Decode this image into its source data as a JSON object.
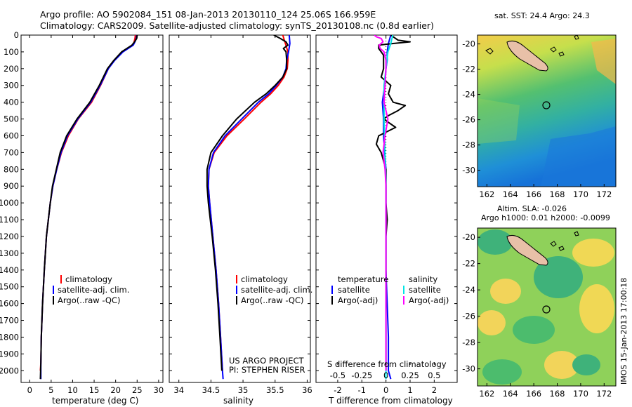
{
  "header": {
    "title_line1": "Argo profile: AO 5902084_151 08-Jan-2013 20130110_124 25.06S 166.959E",
    "title_line2": "Climatology: CARS2009. Satellite-adjusted climatology: synTS_20130108.nc (0.8d earlier)"
  },
  "colors": {
    "climatology": "#ff0000",
    "satellite": "#0000ff",
    "argo": "#000000",
    "sal_satellite": "#00e5e5",
    "sal_argo": "#ff00ff",
    "land": "#e8c0a8"
  },
  "depth_axis": {
    "ticks": [
      0,
      100,
      200,
      300,
      400,
      500,
      600,
      700,
      800,
      900,
      1000,
      1100,
      1200,
      1300,
      1400,
      1500,
      1600,
      1700,
      1800,
      1900,
      2000
    ]
  },
  "chart_data": [
    {
      "type": "line",
      "xlabel": "temperature (deg C)",
      "xticks": [
        "0",
        "5",
        "10",
        "15",
        "20",
        "25",
        "30"
      ],
      "xlim": [
        -2,
        31
      ],
      "ylim": [
        0,
        2070
      ],
      "legend": [
        "climatology",
        "satellite-adj. clim.",
        "Argo(..raw -QC)"
      ],
      "series": [
        {
          "name": "climatology",
          "color_key": "climatology",
          "depth": [
            0,
            20,
            40,
            60,
            80,
            100,
            150,
            200,
            300,
            400,
            500,
            600,
            700,
            800,
            900,
            1000,
            1200,
            1400,
            1600,
            1800,
            1950,
            2000
          ],
          "values": [
            24.6,
            24.5,
            24.3,
            24.0,
            22.8,
            21.6,
            19.7,
            18.3,
            16.5,
            14.4,
            11.3,
            9.0,
            7.4,
            6.3,
            5.4,
            4.8,
            3.9,
            3.4,
            3.0,
            2.7,
            2.6,
            2.5
          ]
        },
        {
          "name": "satellite-adj. clim.",
          "color_key": "satellite",
          "depth": [
            0,
            20,
            40,
            60,
            80,
            100,
            150,
            200,
            300,
            400,
            500,
            600,
            700,
            800,
            900,
            1000,
            1200,
            1400,
            1600,
            1800,
            1950,
            2050
          ],
          "values": [
            24.9,
            24.8,
            24.5,
            24.1,
            22.9,
            21.7,
            19.8,
            18.3,
            16.4,
            14.2,
            11.2,
            8.8,
            7.3,
            6.3,
            5.4,
            4.8,
            3.9,
            3.4,
            3.0,
            2.7,
            2.6,
            2.6
          ]
        },
        {
          "name": "Argo(..raw -QC)",
          "color_key": "argo",
          "depth": [
            0,
            20,
            40,
            60,
            80,
            100,
            150,
            200,
            300,
            400,
            500,
            600,
            700,
            800,
            900,
            1000,
            1200,
            1400,
            1600,
            1800,
            1950,
            2050
          ],
          "values": [
            25.0,
            24.9,
            24.4,
            23.8,
            22.6,
            21.4,
            19.6,
            18.1,
            16.2,
            14.0,
            11.0,
            8.6,
            7.1,
            6.2,
            5.3,
            4.8,
            3.9,
            3.4,
            3.0,
            2.7,
            2.6,
            2.5
          ]
        }
      ]
    },
    {
      "type": "line",
      "xlabel": "salinity",
      "xticks": [
        "34",
        "34.5",
        "35",
        "35.5",
        "36"
      ],
      "xlim": [
        33.85,
        36.05
      ],
      "ylim": [
        0,
        2070
      ],
      "legend": [
        "climatology",
        "satellite-adj. clim.",
        "Argo(..raw -QC)"
      ],
      "annotation": [
        "US ARGO PROJECT",
        "PI: STEPHEN RISER"
      ],
      "series": [
        {
          "name": "climatology",
          "color_key": "climatology",
          "depth": [
            0,
            50,
            100,
            150,
            200,
            250,
            300,
            350,
            400,
            500,
            600,
            700,
            800,
            900,
            1000,
            1200,
            1400,
            1600,
            1800,
            2000
          ],
          "values": [
            35.62,
            35.66,
            35.7,
            35.7,
            35.69,
            35.64,
            35.55,
            35.43,
            35.28,
            35.02,
            34.75,
            34.55,
            34.47,
            34.46,
            34.48,
            34.53,
            34.58,
            34.62,
            34.65,
            34.68
          ]
        },
        {
          "name": "satellite-adj. clim.",
          "color_key": "satellite",
          "depth": [
            0,
            50,
            100,
            150,
            200,
            250,
            300,
            350,
            400,
            500,
            600,
            700,
            800,
            900,
            1000,
            1200,
            1400,
            1600,
            1800,
            2000,
            2050
          ],
          "values": [
            35.72,
            35.73,
            35.71,
            35.68,
            35.67,
            35.62,
            35.52,
            35.4,
            35.24,
            34.98,
            34.72,
            34.54,
            34.47,
            34.46,
            34.48,
            34.53,
            34.58,
            34.62,
            34.65,
            34.68,
            34.69
          ]
        },
        {
          "name": "Argo(..raw -QC)",
          "color_key": "argo",
          "depth": [
            0,
            20,
            40,
            60,
            80,
            100,
            150,
            200,
            250,
            300,
            350,
            400,
            500,
            600,
            700,
            800,
            900,
            1000,
            1200,
            1400,
            1600,
            1800,
            2000
          ],
          "values": [
            35.48,
            35.58,
            35.67,
            35.7,
            35.63,
            35.67,
            35.68,
            35.68,
            35.62,
            35.5,
            35.36,
            35.18,
            34.9,
            34.68,
            34.5,
            34.44,
            34.44,
            34.46,
            34.52,
            34.57,
            34.61,
            34.64,
            34.67
          ]
        }
      ]
    },
    {
      "type": "line",
      "xlabel": "T difference from climatology",
      "xlabel_top": "S difference from climatology",
      "xticks": [
        "-2",
        "-1",
        "0",
        "1",
        "2"
      ],
      "xticks_s": [
        "-0.5",
        "-0.25",
        "0",
        "0.25",
        "0.5"
      ],
      "xlim": [
        -2.9,
        2.95
      ],
      "ylim": [
        0,
        2070
      ],
      "legend_temperature": [
        "temperature",
        "satellite",
        "Argo(-adj)"
      ],
      "legend_salinity": [
        "salinity",
        "satellite",
        "Argo(-adj)"
      ],
      "series": [
        {
          "name": "temperature satellite",
          "color_key": "satellite",
          "depth": [
            0,
            50,
            100,
            150,
            200,
            300,
            400,
            500,
            600,
            800,
            1000,
            1400,
            1800,
            2000,
            2050
          ],
          "values": [
            0.2,
            0.1,
            0.05,
            0.05,
            0.0,
            -0.05,
            -0.15,
            -0.1,
            -0.1,
            0.0,
            0.0,
            0.0,
            0.1,
            0.1,
            0.2
          ]
        },
        {
          "name": "temperature Argo(-adj)",
          "color_key": "argo",
          "depth": [
            0,
            30,
            40,
            50,
            60,
            80,
            100,
            120,
            150,
            200,
            250,
            300,
            350,
            400,
            420,
            450,
            480,
            500,
            550,
            600,
            650,
            700,
            750,
            800,
            900,
            1000,
            1100,
            1200,
            1400,
            1600,
            1800,
            2000
          ],
          "values": [
            0.2,
            0.5,
            1.0,
            0.3,
            -0.3,
            -0.3,
            -0.2,
            -0.1,
            -0.1,
            -0.1,
            -0.2,
            0.2,
            0.1,
            0.3,
            0.8,
            0.5,
            0.1,
            -0.1,
            0.4,
            -0.3,
            -0.4,
            -0.2,
            -0.1,
            0.0,
            0.0,
            0.0,
            0.05,
            0.0,
            0.0,
            0.0,
            0.0,
            0.0
          ]
        },
        {
          "name": "salinity satellite",
          "color_key": "sal_satellite",
          "depth": [
            0,
            50,
            100,
            200,
            300,
            500,
            700,
            900,
            1200,
            1600,
            2000,
            2050
          ],
          "values": [
            0.07,
            0.05,
            0.02,
            0.0,
            -0.02,
            -0.02,
            -0.01,
            0.0,
            0.0,
            0.0,
            0.0,
            0.0
          ]
        },
        {
          "name": "salinity Argo(-adj)",
          "color_key": "sal_argo",
          "depth": [
            0,
            10,
            20,
            40,
            60,
            80,
            100,
            150,
            200,
            300,
            400,
            500,
            600,
            700,
            800,
            900,
            1000,
            1200,
            1600,
            2000
          ],
          "values": [
            -0.12,
            -0.1,
            -0.05,
            -0.03,
            -0.07,
            -0.06,
            -0.02,
            0.0,
            0.0,
            -0.01,
            -0.02,
            0.02,
            -0.01,
            -0.03,
            -0.01,
            0.0,
            0.0,
            0.0,
            0.0,
            0.0
          ]
        }
      ]
    },
    {
      "type": "heatmap",
      "title": "sat. SST: 24.4 Argo: 24.3",
      "xticks": [
        "162",
        "164",
        "166",
        "168",
        "170",
        "172"
      ],
      "yticks": [
        "-20",
        "-22",
        "-24",
        "-26",
        "-28",
        "-30"
      ],
      "xlim": [
        161.2,
        173.0
      ],
      "ylim": [
        -31.3,
        -19.3
      ],
      "profile_location": [
        166.959,
        -25.06
      ]
    },
    {
      "type": "heatmap",
      "title": [
        "Altim. SLA: -0.026",
        "Argo h1000: 0.01 h2000: -0.0099"
      ],
      "xticks": [
        "162",
        "164",
        "166",
        "168",
        "170",
        "172"
      ],
      "yticks": [
        "-20",
        "-22",
        "-24",
        "-26",
        "-28",
        "-30"
      ],
      "xlim": [
        161.2,
        173.0
      ],
      "ylim": [
        -31.3,
        -19.3
      ],
      "profile_location": [
        166.959,
        -25.06
      ]
    }
  ],
  "footer": {
    "stamp": "IMOS 15-Jan-2013 17:00:18"
  }
}
